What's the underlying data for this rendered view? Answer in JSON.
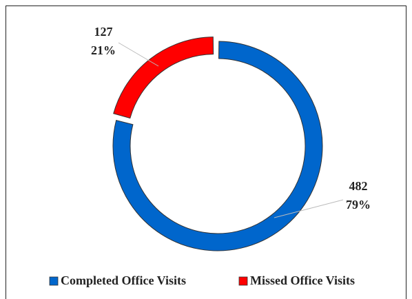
{
  "chart_data": {
    "type": "donut",
    "categories": [
      "Completed Office Visits",
      "Missed Office Visits"
    ],
    "values": [
      482,
      127
    ],
    "percent_values": [
      79,
      21
    ],
    "percent_labels": [
      "79%",
      "21%"
    ],
    "colors": [
      "#0066cc",
      "#ff0000"
    ],
    "legend": "bottom"
  }
}
